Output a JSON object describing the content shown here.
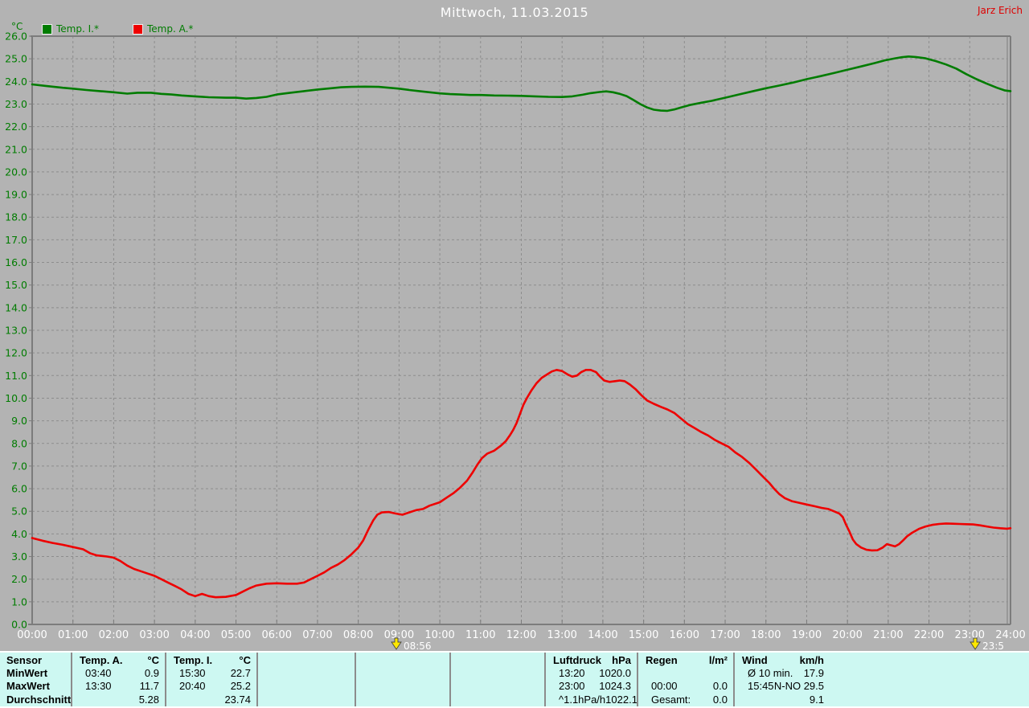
{
  "header": {
    "title": "Mittwoch, 11.03.2015",
    "watermark": "Jarz Erich"
  },
  "legend": {
    "unit_label": "°C",
    "items": [
      {
        "label": "Temp. I.*",
        "color": "#007c00"
      },
      {
        "label": "Temp. A.*",
        "color": "#ee0000"
      }
    ]
  },
  "chart_data": {
    "type": "line",
    "title": "Mittwoch, 11.03.2015",
    "grid": true,
    "legend_position": "top-left",
    "y_axis": {
      "unit": "°C",
      "min": 0,
      "max": 26,
      "tick_step": 1
    },
    "x_axis": {
      "unit": "time",
      "max_minutes": 1440,
      "tick_interval_minutes": 60,
      "tick_labels": [
        "00:00",
        "01:00",
        "02:00",
        "03:00",
        "04:00",
        "05:00",
        "06:00",
        "07:00",
        "08:00",
        "09:00",
        "10:00",
        "11:00",
        "12:00",
        "13:00",
        "14:00",
        "15:00",
        "16:00",
        "17:00",
        "18:00",
        "19:00",
        "20:00",
        "21:00",
        "22:00",
        "23:00",
        "24:00"
      ]
    },
    "markers": [
      {
        "name": "morning-time-marker",
        "label": "08:56",
        "minutes": 536
      },
      {
        "name": "evening-time-marker",
        "label": "23:5",
        "minutes": 1388
      }
    ],
    "series": [
      {
        "name": "Temp. I.*",
        "color": "#007c00",
        "points": [
          [
            0,
            23.87
          ],
          [
            20,
            23.8
          ],
          [
            45,
            23.72
          ],
          [
            60,
            23.68
          ],
          [
            80,
            23.62
          ],
          [
            100,
            23.57
          ],
          [
            120,
            23.52
          ],
          [
            140,
            23.46
          ],
          [
            155,
            23.5
          ],
          [
            175,
            23.5
          ],
          [
            190,
            23.45
          ],
          [
            205,
            23.42
          ],
          [
            220,
            23.38
          ],
          [
            240,
            23.34
          ],
          [
            260,
            23.3
          ],
          [
            285,
            23.28
          ],
          [
            300,
            23.28
          ],
          [
            315,
            23.24
          ],
          [
            330,
            23.27
          ],
          [
            345,
            23.32
          ],
          [
            360,
            23.42
          ],
          [
            380,
            23.5
          ],
          [
            400,
            23.57
          ],
          [
            420,
            23.64
          ],
          [
            440,
            23.7
          ],
          [
            455,
            23.74
          ],
          [
            470,
            23.76
          ],
          [
            490,
            23.77
          ],
          [
            510,
            23.76
          ],
          [
            525,
            23.72
          ],
          [
            540,
            23.68
          ],
          [
            555,
            23.62
          ],
          [
            570,
            23.57
          ],
          [
            585,
            23.52
          ],
          [
            600,
            23.47
          ],
          [
            615,
            23.44
          ],
          [
            630,
            23.42
          ],
          [
            645,
            23.4
          ],
          [
            660,
            23.4
          ],
          [
            680,
            23.38
          ],
          [
            700,
            23.37
          ],
          [
            720,
            23.36
          ],
          [
            740,
            23.34
          ],
          [
            760,
            23.32
          ],
          [
            780,
            23.31
          ],
          [
            795,
            23.34
          ],
          [
            810,
            23.41
          ],
          [
            822,
            23.48
          ],
          [
            835,
            23.53
          ],
          [
            845,
            23.56
          ],
          [
            855,
            23.52
          ],
          [
            865,
            23.45
          ],
          [
            875,
            23.35
          ],
          [
            885,
            23.18
          ],
          [
            895,
            23.0
          ],
          [
            905,
            22.85
          ],
          [
            915,
            22.75
          ],
          [
            925,
            22.71
          ],
          [
            935,
            22.7
          ],
          [
            945,
            22.76
          ],
          [
            955,
            22.85
          ],
          [
            970,
            22.97
          ],
          [
            985,
            23.06
          ],
          [
            1000,
            23.14
          ],
          [
            1020,
            23.28
          ],
          [
            1040,
            23.42
          ],
          [
            1060,
            23.56
          ],
          [
            1080,
            23.7
          ],
          [
            1100,
            23.82
          ],
          [
            1120,
            23.95
          ],
          [
            1140,
            24.1
          ],
          [
            1160,
            24.23
          ],
          [
            1180,
            24.37
          ],
          [
            1200,
            24.52
          ],
          [
            1220,
            24.66
          ],
          [
            1240,
            24.81
          ],
          [
            1255,
            24.93
          ],
          [
            1270,
            25.02
          ],
          [
            1280,
            25.07
          ],
          [
            1290,
            25.1
          ],
          [
            1300,
            25.08
          ],
          [
            1315,
            25.02
          ],
          [
            1330,
            24.9
          ],
          [
            1345,
            24.75
          ],
          [
            1360,
            24.57
          ],
          [
            1375,
            24.32
          ],
          [
            1390,
            24.1
          ],
          [
            1405,
            23.9
          ],
          [
            1420,
            23.72
          ],
          [
            1432,
            23.6
          ],
          [
            1440,
            23.57
          ]
        ]
      },
      {
        "name": "Temp. A.*",
        "color": "#ee0000",
        "points": [
          [
            0,
            3.82
          ],
          [
            15,
            3.7
          ],
          [
            30,
            3.6
          ],
          [
            45,
            3.52
          ],
          [
            60,
            3.42
          ],
          [
            75,
            3.32
          ],
          [
            85,
            3.15
          ],
          [
            95,
            3.05
          ],
          [
            110,
            3.0
          ],
          [
            120,
            2.95
          ],
          [
            130,
            2.8
          ],
          [
            140,
            2.6
          ],
          [
            150,
            2.45
          ],
          [
            160,
            2.35
          ],
          [
            170,
            2.25
          ],
          [
            180,
            2.15
          ],
          [
            190,
            2.0
          ],
          [
            200,
            1.85
          ],
          [
            210,
            1.7
          ],
          [
            220,
            1.55
          ],
          [
            230,
            1.35
          ],
          [
            240,
            1.25
          ],
          [
            250,
            1.35
          ],
          [
            260,
            1.25
          ],
          [
            270,
            1.2
          ],
          [
            285,
            1.22
          ],
          [
            300,
            1.3
          ],
          [
            310,
            1.45
          ],
          [
            320,
            1.6
          ],
          [
            330,
            1.72
          ],
          [
            345,
            1.8
          ],
          [
            360,
            1.82
          ],
          [
            375,
            1.8
          ],
          [
            390,
            1.8
          ],
          [
            400,
            1.85
          ],
          [
            410,
            2.0
          ],
          [
            420,
            2.15
          ],
          [
            430,
            2.3
          ],
          [
            440,
            2.5
          ],
          [
            450,
            2.65
          ],
          [
            460,
            2.85
          ],
          [
            470,
            3.1
          ],
          [
            480,
            3.4
          ],
          [
            487,
            3.7
          ],
          [
            495,
            4.2
          ],
          [
            502,
            4.6
          ],
          [
            508,
            4.85
          ],
          [
            515,
            4.95
          ],
          [
            525,
            4.97
          ],
          [
            535,
            4.9
          ],
          [
            545,
            4.85
          ],
          [
            555,
            4.95
          ],
          [
            565,
            5.05
          ],
          [
            575,
            5.1
          ],
          [
            585,
            5.25
          ],
          [
            600,
            5.4
          ],
          [
            610,
            5.6
          ],
          [
            620,
            5.8
          ],
          [
            630,
            6.05
          ],
          [
            640,
            6.35
          ],
          [
            648,
            6.7
          ],
          [
            655,
            7.05
          ],
          [
            662,
            7.35
          ],
          [
            670,
            7.55
          ],
          [
            680,
            7.68
          ],
          [
            690,
            7.9
          ],
          [
            697,
            8.1
          ],
          [
            703,
            8.35
          ],
          [
            708,
            8.6
          ],
          [
            713,
            8.9
          ],
          [
            718,
            9.3
          ],
          [
            723,
            9.7
          ],
          [
            728,
            10.0
          ],
          [
            735,
            10.35
          ],
          [
            742,
            10.65
          ],
          [
            750,
            10.9
          ],
          [
            758,
            11.05
          ],
          [
            765,
            11.18
          ],
          [
            772,
            11.25
          ],
          [
            780,
            11.2
          ],
          [
            788,
            11.05
          ],
          [
            795,
            10.95
          ],
          [
            802,
            11.0
          ],
          [
            808,
            11.15
          ],
          [
            815,
            11.25
          ],
          [
            822,
            11.25
          ],
          [
            830,
            11.15
          ],
          [
            836,
            10.95
          ],
          [
            842,
            10.78
          ],
          [
            850,
            10.72
          ],
          [
            858,
            10.75
          ],
          [
            865,
            10.78
          ],
          [
            872,
            10.75
          ],
          [
            880,
            10.6
          ],
          [
            888,
            10.4
          ],
          [
            896,
            10.15
          ],
          [
            905,
            9.9
          ],
          [
            915,
            9.75
          ],
          [
            925,
            9.62
          ],
          [
            935,
            9.5
          ],
          [
            945,
            9.35
          ],
          [
            955,
            9.1
          ],
          [
            965,
            8.85
          ],
          [
            975,
            8.68
          ],
          [
            985,
            8.5
          ],
          [
            995,
            8.35
          ],
          [
            1005,
            8.15
          ],
          [
            1015,
            8.0
          ],
          [
            1025,
            7.85
          ],
          [
            1035,
            7.6
          ],
          [
            1045,
            7.4
          ],
          [
            1055,
            7.15
          ],
          [
            1065,
            6.85
          ],
          [
            1075,
            6.55
          ],
          [
            1085,
            6.25
          ],
          [
            1092,
            6.0
          ],
          [
            1100,
            5.75
          ],
          [
            1108,
            5.58
          ],
          [
            1118,
            5.45
          ],
          [
            1128,
            5.38
          ],
          [
            1140,
            5.3
          ],
          [
            1152,
            5.22
          ],
          [
            1162,
            5.15
          ],
          [
            1172,
            5.1
          ],
          [
            1180,
            5.0
          ],
          [
            1188,
            4.9
          ],
          [
            1193,
            4.75
          ],
          [
            1198,
            4.4
          ],
          [
            1203,
            4.1
          ],
          [
            1208,
            3.75
          ],
          [
            1213,
            3.55
          ],
          [
            1220,
            3.4
          ],
          [
            1228,
            3.3
          ],
          [
            1236,
            3.27
          ],
          [
            1244,
            3.28
          ],
          [
            1252,
            3.4
          ],
          [
            1258,
            3.55
          ],
          [
            1264,
            3.5
          ],
          [
            1270,
            3.45
          ],
          [
            1276,
            3.55
          ],
          [
            1282,
            3.72
          ],
          [
            1288,
            3.9
          ],
          [
            1295,
            4.05
          ],
          [
            1305,
            4.22
          ],
          [
            1315,
            4.33
          ],
          [
            1325,
            4.4
          ],
          [
            1335,
            4.44
          ],
          [
            1345,
            4.46
          ],
          [
            1355,
            4.45
          ],
          [
            1365,
            4.44
          ],
          [
            1375,
            4.43
          ],
          [
            1385,
            4.42
          ],
          [
            1395,
            4.38
          ],
          [
            1405,
            4.33
          ],
          [
            1415,
            4.28
          ],
          [
            1425,
            4.25
          ],
          [
            1435,
            4.23
          ],
          [
            1440,
            4.25
          ]
        ]
      }
    ]
  },
  "stats_table": {
    "row_labels": [
      "Sensor",
      "MinWert",
      "MaxWert",
      "Durchschnitt"
    ],
    "columns": [
      {
        "name": "Temp. A.",
        "unit": "°C",
        "rows": [
          [
            "03:40",
            "0.9"
          ],
          [
            "13:30",
            "11.7"
          ],
          [
            "",
            "5.28"
          ]
        ]
      },
      {
        "name": "Temp. I.",
        "unit": "°C",
        "rows": [
          [
            "15:30",
            "22.7"
          ],
          [
            "20:40",
            "25.2"
          ],
          [
            "",
            "23.74"
          ]
        ]
      },
      {
        "name": "",
        "unit": "",
        "rows": [
          [
            "",
            ""
          ],
          [
            "",
            ""
          ],
          [
            "",
            ""
          ]
        ]
      },
      {
        "name": "",
        "unit": "",
        "rows": [
          [
            "",
            ""
          ],
          [
            "",
            ""
          ],
          [
            "",
            ""
          ]
        ]
      },
      {
        "name": "",
        "unit": "",
        "rows": [
          [
            "",
            ""
          ],
          [
            "",
            ""
          ],
          [
            "",
            ""
          ]
        ]
      },
      {
        "name": "Luftdruck",
        "unit": "hPa",
        "rows": [
          [
            "13:20",
            "1020.0"
          ],
          [
            "23:00",
            "1024.3"
          ],
          [
            "^1.1hPa/h",
            "1022.1"
          ]
        ]
      },
      {
        "name": "Regen",
        "unit": "l/m²",
        "rows": [
          [
            "",
            ""
          ],
          [
            "00:00",
            "0.0"
          ],
          [
            "Gesamt:",
            "0.0"
          ]
        ]
      },
      {
        "name": "Wind",
        "unit": "km/h",
        "rows": [
          [
            "Ø 10 min.",
            "17.9"
          ],
          [
            "15:45",
            "N-NO 29.5"
          ],
          [
            "",
            "9.1"
          ]
        ]
      }
    ]
  },
  "colors": {
    "background": "#b3b3b3",
    "grid": "#8d8d8d",
    "axis": "#7c7c7c",
    "y_labels": "#007c00",
    "x_labels": "#ffffff",
    "watermark": "#dd0000",
    "table_background": "#cdf8f2",
    "marker": "#ffe800"
  }
}
